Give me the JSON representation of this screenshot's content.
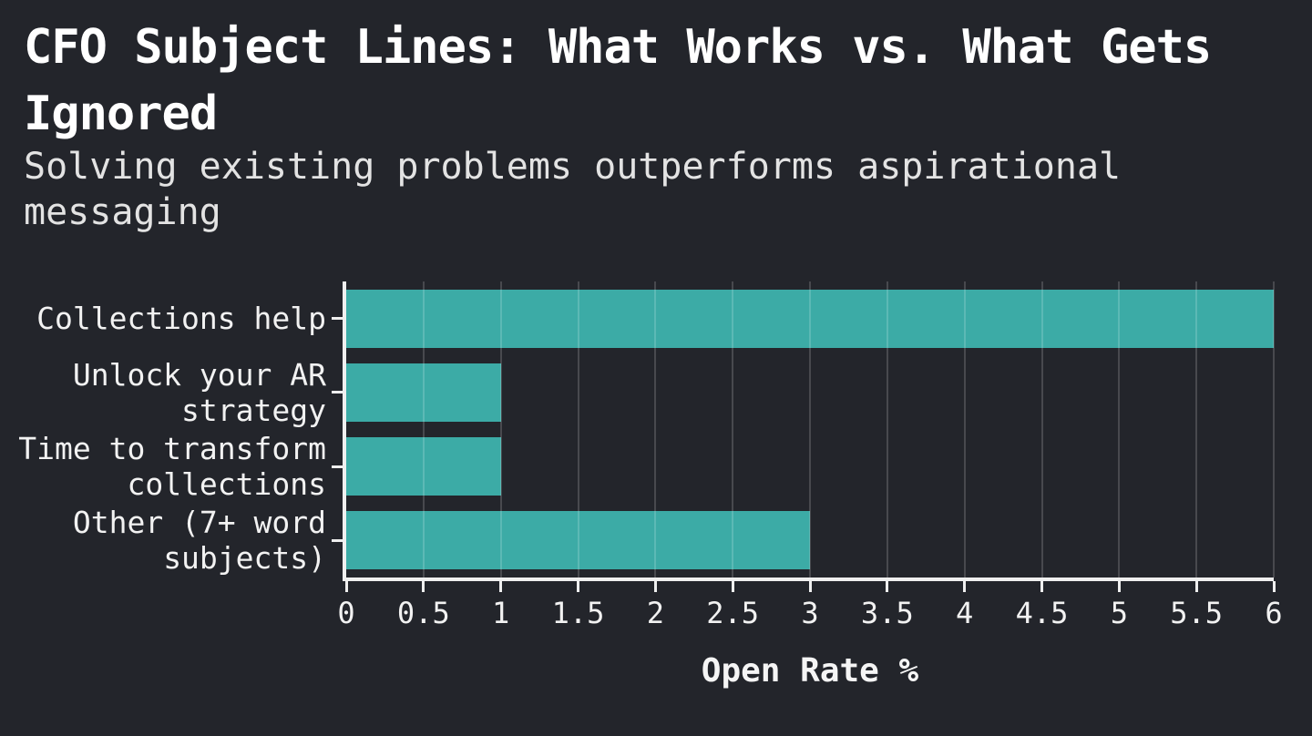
{
  "header": {
    "title": "CFO Subject Lines: What Works vs. What Gets Ignored",
    "subtitle": "Solving existing problems outperforms aspirational messaging"
  },
  "chart_data": {
    "type": "bar",
    "orientation": "horizontal",
    "title": "CFO Subject Lines: What Works vs. What Gets Ignored",
    "subtitle": "Solving existing problems outperforms aspirational messaging",
    "categories": [
      "Collections help",
      "Unlock your AR strategy",
      "Time to transform collections",
      "Other (7+ word subjects)"
    ],
    "values": [
      6,
      1,
      1,
      3
    ],
    "xlabel": "Open Rate %",
    "ylabel": "",
    "xlim": [
      0,
      6
    ],
    "x_ticks": [
      "0",
      "0.5",
      "1",
      "1.5",
      "2",
      "2.5",
      "3",
      "3.5",
      "4",
      "4.5",
      "5",
      "5.5",
      "6"
    ],
    "grid": "vertical",
    "legend": "none",
    "colors": {
      "bar": "#3caba6",
      "background": "#23252b",
      "text": "#f2f2f2",
      "grid": "rgba(255,255,255,0.17)",
      "spine": "#efefef"
    }
  }
}
